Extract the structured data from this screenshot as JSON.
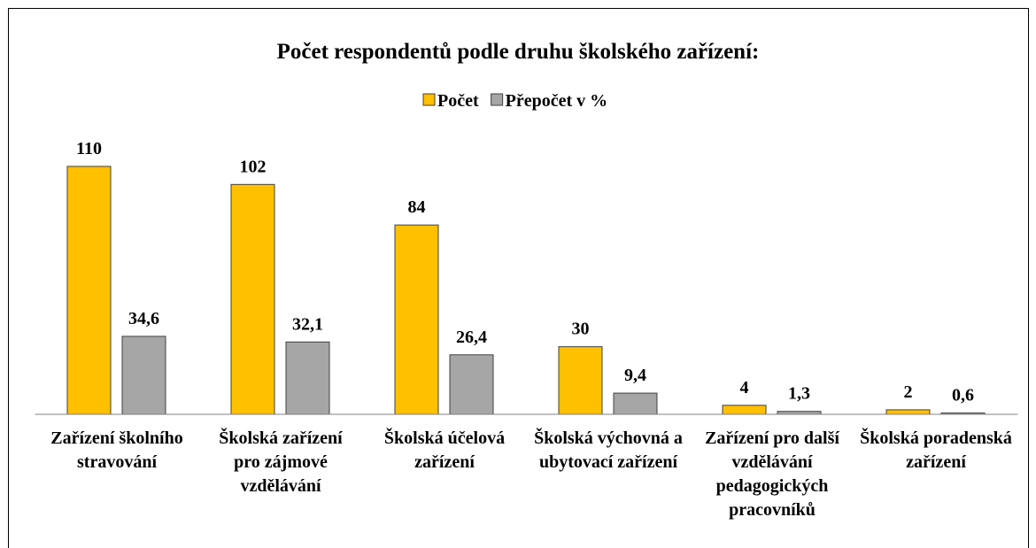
{
  "chart_data": {
    "type": "bar",
    "title": "Počet respondentů podle druhu školského zařízení:",
    "categories": [
      "Zařízení školního stravování",
      "Školská zařízení pro zájmové vzdělávání",
      "Školská účelová zařízení",
      "Školská výchovná a ubytovací zařízení",
      "Zařízení pro další vzdělávání pedagogických pracovníků",
      "Školská poradenská zařízení"
    ],
    "series": [
      {
        "name": "Počet",
        "color": "#ffc000",
        "values": [
          110,
          102,
          84,
          30,
          4,
          2
        ]
      },
      {
        "name": "Přepočet v %",
        "color": "#a6a6a6",
        "values": [
          34.6,
          32.1,
          26.4,
          9.4,
          1.3,
          0.6
        ],
        "value_labels": [
          "34,6",
          "32,1",
          "26,4",
          "9,4",
          "1,3",
          "0,6"
        ]
      }
    ],
    "ylim": [
      0,
      120
    ],
    "legend": "top"
  }
}
